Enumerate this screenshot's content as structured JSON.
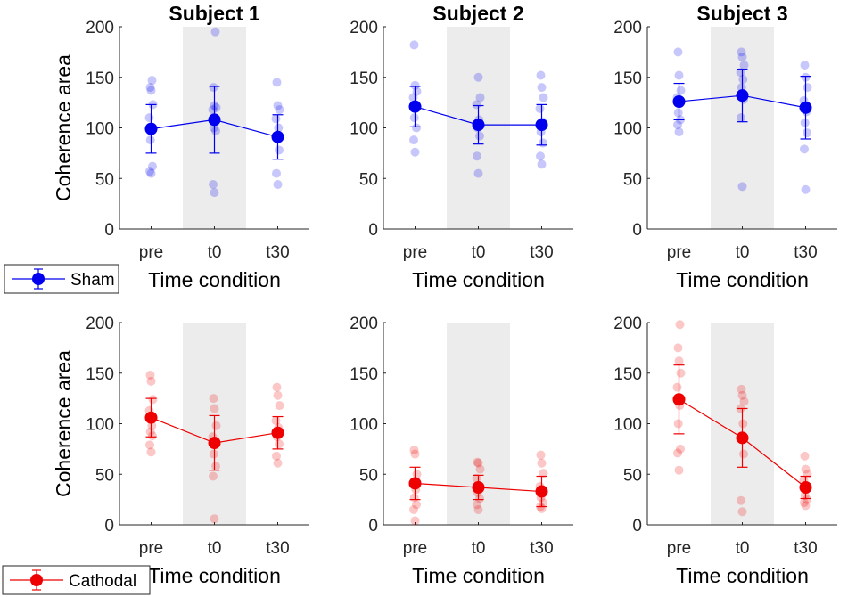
{
  "chart_data": {
    "type": "scatter",
    "ylabel": "Coherence area",
    "xlabel": "Time condition",
    "categories": [
      "pre",
      "t0",
      "t30"
    ],
    "ylim": [
      0,
      200
    ],
    "yticks": [
      0,
      50,
      100,
      150,
      200
    ],
    "shaded_category": "t0",
    "titles": [
      "Subject 1",
      "Subject 2",
      "Subject 3"
    ],
    "colors": {
      "Sham": "#0000ee",
      "Cathodal": "#ee0000",
      "shade": "#ececec"
    },
    "legend": [
      {
        "label": "Sham",
        "row": 0
      },
      {
        "label": "Cathodal",
        "row": 1
      }
    ],
    "panels": [
      {
        "row": 0,
        "col": 0,
        "condition": "Sham",
        "mean": [
          99,
          108,
          91
        ],
        "sd": [
          24,
          33,
          22
        ],
        "points": [
          [
            55,
            57,
            62,
            88,
            100,
            110,
            123,
            137,
            140,
            147
          ],
          [
            36,
            44,
            97,
            100,
            108,
            118,
            120,
            122,
            140,
            195
          ],
          [
            44,
            55,
            78,
            90,
            100,
            109,
            118,
            122,
            145
          ]
        ]
      },
      {
        "row": 0,
        "col": 1,
        "condition": "Sham",
        "mean": [
          121,
          103,
          103
        ],
        "sd": [
          20,
          19,
          20
        ],
        "points": [
          [
            76,
            88,
            100,
            110,
            120,
            130,
            136,
            142,
            182
          ],
          [
            55,
            72,
            92,
            100,
            108,
            123,
            130,
            150
          ],
          [
            64,
            72,
            85,
            96,
            106,
            119,
            130,
            140,
            152
          ]
        ]
      },
      {
        "row": 0,
        "col": 2,
        "condition": "Sham",
        "mean": [
          126,
          132,
          120
        ],
        "sd": [
          18,
          26,
          31
        ],
        "points": [
          [
            96,
            103,
            108,
            115,
            125,
            130,
            137,
            152,
            175
          ],
          [
            42,
            110,
            128,
            140,
            148,
            155,
            162,
            170,
            175
          ],
          [
            39,
            79,
            95,
            105,
            116,
            127,
            140,
            150,
            162
          ]
        ]
      },
      {
        "row": 1,
        "col": 0,
        "condition": "Cathodal",
        "mean": [
          106,
          81,
          91
        ],
        "sd": [
          19,
          27,
          16
        ],
        "points": [
          [
            72,
            79,
            88,
            92,
            98,
            113,
            124,
            142,
            148
          ],
          [
            6,
            48,
            58,
            70,
            80,
            87,
            98,
            115,
            125
          ],
          [
            61,
            68,
            80,
            87,
            96,
            103,
            118,
            128,
            136
          ]
        ]
      },
      {
        "row": 1,
        "col": 1,
        "condition": "Cathodal",
        "mean": [
          41,
          37,
          33
        ],
        "sd": [
          16,
          12,
          15
        ],
        "points": [
          [
            4,
            15,
            20,
            27,
            35,
            40,
            50,
            70,
            74
          ],
          [
            15,
            20,
            26,
            32,
            38,
            46,
            55,
            61,
            62
          ],
          [
            16,
            18,
            22,
            27,
            32,
            38,
            51,
            61,
            69
          ]
        ]
      },
      {
        "row": 1,
        "col": 2,
        "condition": "Cathodal",
        "mean": [
          124,
          86,
          37
        ],
        "sd": [
          34,
          29,
          11
        ],
        "points": [
          [
            54,
            71,
            75,
            100,
            118,
            136,
            150,
            162,
            175,
            198
          ],
          [
            13,
            24,
            70,
            88,
            100,
            115,
            122,
            128,
            134
          ],
          [
            19,
            22,
            25,
            29,
            35,
            44,
            50,
            55,
            68
          ]
        ]
      }
    ]
  }
}
